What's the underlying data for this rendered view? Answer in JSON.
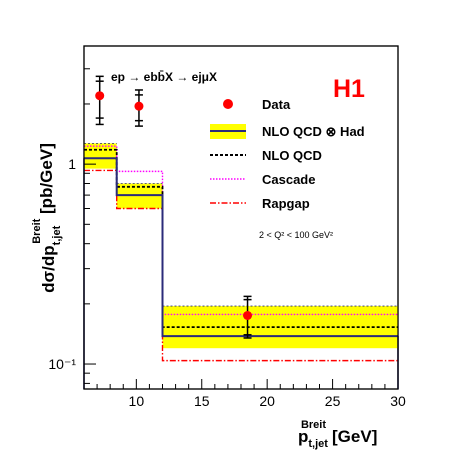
{
  "chart_data": {
    "type": "histogram",
    "experiment_label": "H1",
    "process_label": "ep → ebb̄X → ejμX",
    "cut_label": "2 < Q² < 100 GeV²",
    "y_log": true,
    "xlim": [
      6,
      30
    ],
    "ylim": [
      0.075,
      3.9
    ],
    "x_ticks": [
      10,
      15,
      20,
      25,
      30
    ],
    "y_tick_labels": [
      {
        "value": 1,
        "text": "1"
      },
      {
        "value": 0.1,
        "text": "10⁻¹"
      }
    ],
    "bin_edges": [
      6,
      8.5,
      12,
      30
    ],
    "legend": [
      {
        "key": "data",
        "label": "Data"
      },
      {
        "key": "nlo_had",
        "label": "NLO  QCD ⊗ Had"
      },
      {
        "key": "nlo",
        "label": "NLO  QCD"
      },
      {
        "key": "cascade",
        "label": "Cascade"
      },
      {
        "key": "rapgap",
        "label": "Rapgap"
      }
    ],
    "data_points": [
      {
        "x": 7.2,
        "y": 2.2,
        "y_low": 1.58,
        "y_high": 2.75,
        "y_stat_low": 1.7,
        "y_stat_high": 2.6
      },
      {
        "x": 10.2,
        "y": 1.95,
        "y_low": 1.55,
        "y_high": 2.35,
        "y_stat_low": 1.65,
        "y_stat_high": 2.22
      },
      {
        "x": 18.5,
        "y": 0.175,
        "y_low": 0.135,
        "y_high": 0.218,
        "y_stat_low": 0.14,
        "y_stat_high": 0.21
      }
    ],
    "nlo_had": {
      "central": [
        1.07,
        0.7,
        0.138
      ],
      "band_low": [
        0.95,
        0.6,
        0.12
      ],
      "band_high": [
        1.27,
        0.8,
        0.195
      ]
    },
    "nlo": [
      1.18,
      0.77,
      0.153
    ],
    "cascade": [
      1.23,
      0.92,
      0.177
    ],
    "rapgap": [
      0.93,
      0.6,
      0.104
    ]
  }
}
